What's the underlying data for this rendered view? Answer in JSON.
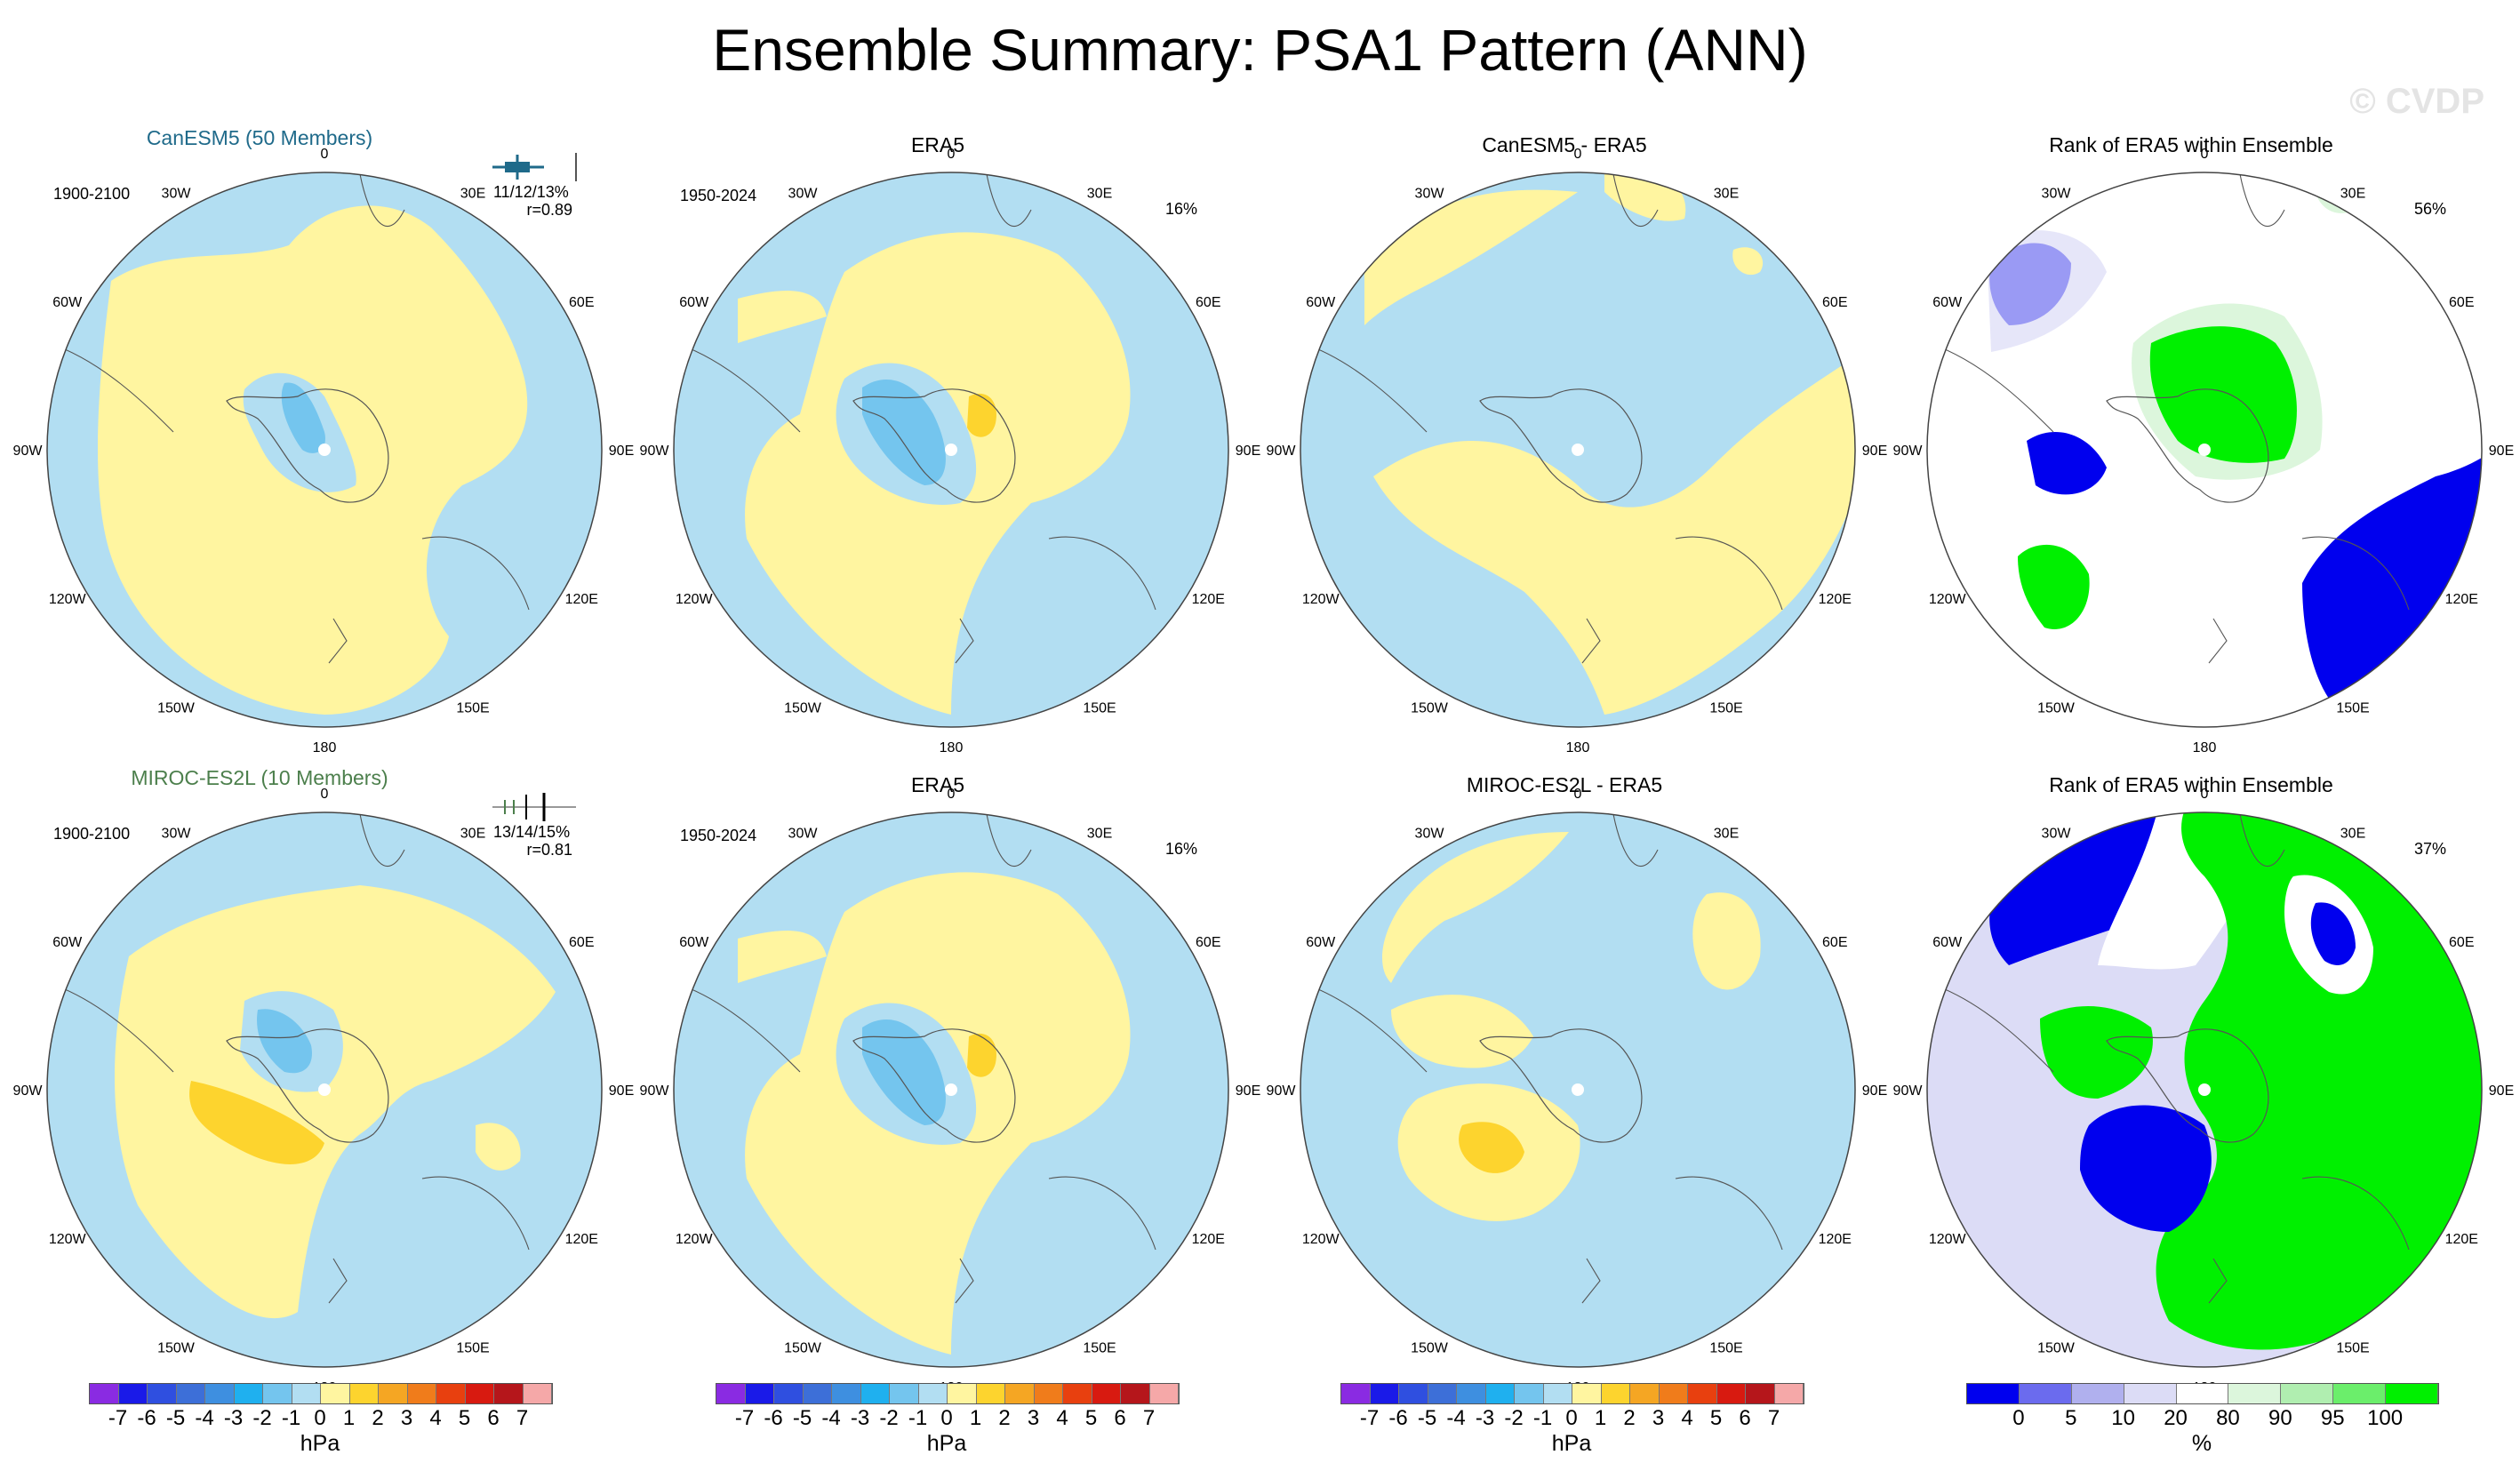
{
  "figure": {
    "title": "Ensemble Summary: PSA1 Pattern (ANN)",
    "watermark": "© CVDP"
  },
  "map_labels": {
    "top": "0",
    "bottom": "180",
    "left": "90W",
    "right": "90E",
    "ul1": "30W",
    "ul2": "60W",
    "ll1": "120W",
    "ll2": "150W",
    "ur1": "30E",
    "ur2": "60E",
    "lr1": "120E",
    "lr2": "150E"
  },
  "rows": [
    {
      "model_title": "CanESM5 (50 Members)",
      "model_range": "1900-2100",
      "stats": "11/12/13%",
      "r": "r=0.89",
      "obs_title": "ERA5",
      "obs_range": "1950-2024",
      "obs_pct": "16%",
      "diff_title": "CanESM5 - ERA5",
      "rank_title": "Rank of ERA5 within Ensemble",
      "rank_pct": "56%"
    },
    {
      "model_title": "MIROC-ES2L (10 Members)",
      "model_range": "1900-2100",
      "stats": "13/14/15%",
      "r": "r=0.81",
      "obs_title": "ERA5",
      "obs_range": "1950-2024",
      "obs_pct": "16%",
      "diff_title": "MIROC-ES2L - ERA5",
      "rank_title": "Rank of ERA5 within Ensemble",
      "rank_pct": "37%"
    }
  ],
  "colors": {
    "neg_light": "#b2def2",
    "neg_mid": "#74c5ee",
    "pos_light": "#fff5a0",
    "pos_mid": "#fdd42e",
    "rank_blue": "#0000ee",
    "rank_lightblue": "#dcdcf6",
    "rank_green": "#00f000",
    "rank_lightgreen": "#dcf6dc"
  },
  "colorbar_hpa": {
    "unit": "hPa",
    "ticks": [
      "-7",
      "-6",
      "-5",
      "-4",
      "-3",
      "-2",
      "-1",
      "0",
      "1",
      "2",
      "3",
      "4",
      "5",
      "6",
      "7"
    ],
    "colors": [
      "#8a2be2",
      "#1a1ae8",
      "#2f4fe0",
      "#3d6fd8",
      "#3e8fe0",
      "#1fb0ef",
      "#74c5ee",
      "#b2def2",
      "#fff5a0",
      "#fdd42e",
      "#f5a623",
      "#f07c1b",
      "#e8400f",
      "#d81a10",
      "#b5161b",
      "#f5a8a8"
    ]
  },
  "colorbar_rank": {
    "unit": "%",
    "ticks": [
      "0",
      "5",
      "10",
      "20",
      "80",
      "90",
      "95",
      "100"
    ],
    "colors": [
      "#0000ee",
      "#6b6bee",
      "#b0b0ee",
      "#dcdcf6",
      "#ffffff",
      "#dcf6dc",
      "#b0eeb0",
      "#6bee6b",
      "#00f000"
    ]
  },
  "chart_data": {
    "type": "polar-stereographic contour maps",
    "field": "PSA1 pattern regression (ANN)",
    "unit": "hPa",
    "contour_levels": [
      -7,
      -6,
      -5,
      -4,
      -3,
      -2,
      -1,
      0,
      1,
      2,
      3,
      4,
      5,
      6,
      7
    ],
    "rank_levels_percent": [
      0,
      5,
      10,
      20,
      80,
      90,
      95,
      100
    ],
    "panels": [
      {
        "row": 1,
        "title": "CanESM5 (50 Members)",
        "period": "1900-2100",
        "pct_variance": "11/12/13%",
        "pattern_corr": 0.89
      },
      {
        "row": 1,
        "title": "ERA5",
        "period": "1950-2024",
        "pct_variance": "16%"
      },
      {
        "row": 1,
        "title": "CanESM5 - ERA5"
      },
      {
        "row": 1,
        "title": "Rank of ERA5 within Ensemble",
        "pct": "56%"
      },
      {
        "row": 2,
        "title": "MIROC-ES2L (10 Members)",
        "period": "1900-2100",
        "pct_variance": "13/14/15%",
        "pattern_corr": 0.81
      },
      {
        "row": 2,
        "title": "ERA5",
        "period": "1950-2024",
        "pct_variance": "16%"
      },
      {
        "row": 2,
        "title": "MIROC-ES2L - ERA5"
      },
      {
        "row": 2,
        "title": "Rank of ERA5 within Ensemble",
        "pct": "37%"
      }
    ]
  }
}
